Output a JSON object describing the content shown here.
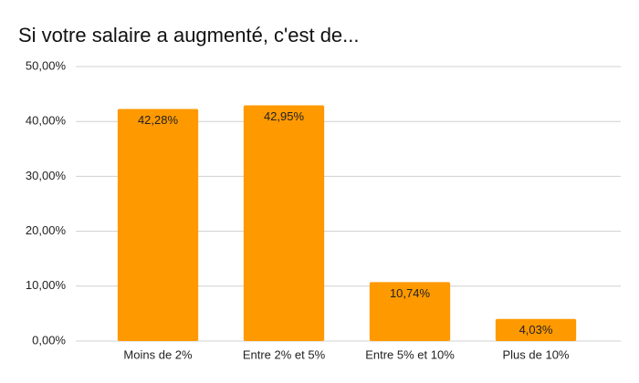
{
  "chart_data": {
    "type": "bar",
    "title": "Si votre salaire a augmenté, c'est de...",
    "categories": [
      "Moins de 2%",
      "Entre 2% et 5%",
      "Entre 5% et 10%",
      "Plus de 10%"
    ],
    "values": [
      42.28,
      42.95,
      10.74,
      4.03
    ],
    "value_labels": [
      "42,28%",
      "42,95%",
      "10,74%",
      "4,03%"
    ],
    "color": "#ff9900",
    "ylim": [
      0,
      50
    ],
    "yticks": [
      {
        "value": 0,
        "label": "0,00%"
      },
      {
        "value": 10,
        "label": "10,00%"
      },
      {
        "value": 20,
        "label": "20,00%"
      },
      {
        "value": 30,
        "label": "30,00%"
      },
      {
        "value": 40,
        "label": "40,00%"
      },
      {
        "value": 50,
        "label": "50,00%"
      }
    ],
    "grid": true
  }
}
